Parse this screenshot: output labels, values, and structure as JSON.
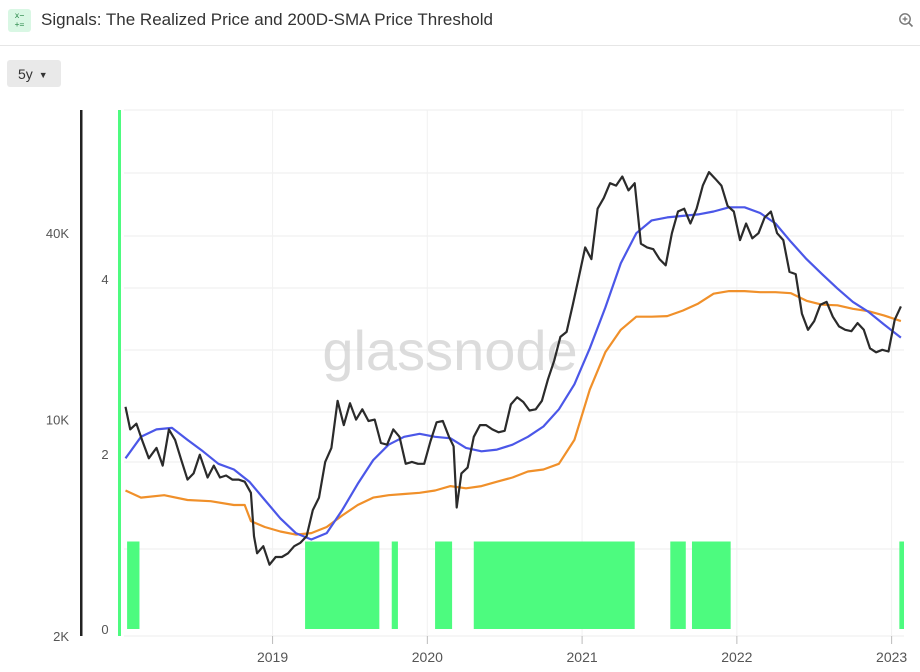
{
  "header": {
    "icon": "calculator-icon",
    "title": "Signals: The Realized Price and 200D-SMA Price Threshold",
    "zoom_icon": "zoom-in-icon"
  },
  "controls": {
    "resolution": "5y"
  },
  "watermark": "glassnode",
  "colors": {
    "price": "#2b2b2b",
    "sma": "#4b57e8",
    "realized": "#f0902a",
    "signal": "#4dfb7f"
  },
  "chart_data": {
    "type": "line",
    "x_ticks": [
      "2019",
      "2020",
      "2021",
      "2022",
      "2023"
    ],
    "x_range": [
      "2018-02",
      "2023-02"
    ],
    "y_left": {
      "scale": "log",
      "ticks": [
        "40K",
        "10K",
        "2K"
      ],
      "tick_values": [
        40000,
        10000,
        2000
      ],
      "range": [
        2000,
        100000
      ]
    },
    "y_right": {
      "ticks": [
        "4",
        "2",
        "0"
      ],
      "tick_values": [
        4,
        2,
        0
      ]
    },
    "series": [
      {
        "key": "price",
        "points": [
          [
            "2018.05",
            11000
          ],
          [
            "2018.08",
            9300
          ],
          [
            "2018.12",
            9700
          ],
          [
            "2018.16",
            8500
          ],
          [
            "2018.20",
            7500
          ],
          [
            "2018.25",
            8100
          ],
          [
            "2018.29",
            7100
          ],
          [
            "2018.33",
            9300
          ],
          [
            "2018.37",
            8600
          ],
          [
            "2018.41",
            7400
          ],
          [
            "2018.45",
            6400
          ],
          [
            "2018.49",
            6700
          ],
          [
            "2018.53",
            7700
          ],
          [
            "2018.58",
            6500
          ],
          [
            "2018.62",
            7100
          ],
          [
            "2018.66",
            6500
          ],
          [
            "2018.70",
            6600
          ],
          [
            "2018.74",
            6400
          ],
          [
            "2018.78",
            6400
          ],
          [
            "2018.82",
            6300
          ],
          [
            "2018.86",
            5800
          ],
          [
            "2018.88",
            4200
          ],
          [
            "2018.90",
            3700
          ],
          [
            "2018.94",
            3900
          ],
          [
            "2018.98",
            3400
          ],
          [
            "2019.02",
            3600
          ],
          [
            "2019.06",
            3600
          ],
          [
            "2019.10",
            3700
          ],
          [
            "2019.14",
            3900
          ],
          [
            "2019.18",
            4000
          ],
          [
            "2019.22",
            4200
          ],
          [
            "2019.26",
            5100
          ],
          [
            "2019.30",
            5600
          ],
          [
            "2019.34",
            7300
          ],
          [
            "2019.38",
            8100
          ],
          [
            "2019.42",
            11500
          ],
          [
            "2019.46",
            9600
          ],
          [
            "2019.50",
            11300
          ],
          [
            "2019.54",
            10000
          ],
          [
            "2019.58",
            10800
          ],
          [
            "2019.62",
            9900
          ],
          [
            "2019.66",
            10000
          ],
          [
            "2019.70",
            8400
          ],
          [
            "2019.74",
            8300
          ],
          [
            "2019.78",
            9300
          ],
          [
            "2019.82",
            8800
          ],
          [
            "2019.86",
            7200
          ],
          [
            "2019.90",
            7300
          ],
          [
            "2019.94",
            7200
          ],
          [
            "2019.98",
            7200
          ],
          [
            "2020.02",
            8500
          ],
          [
            "2020.06",
            9800
          ],
          [
            "2020.10",
            9900
          ],
          [
            "2020.14",
            8800
          ],
          [
            "2020.17",
            8200
          ],
          [
            "2020.19",
            5200
          ],
          [
            "2020.22",
            6700
          ],
          [
            "2020.26",
            7000
          ],
          [
            "2020.30",
            8800
          ],
          [
            "2020.34",
            9600
          ],
          [
            "2020.38",
            9600
          ],
          [
            "2020.42",
            9300
          ],
          [
            "2020.46",
            9100
          ],
          [
            "2020.50",
            9200
          ],
          [
            "2020.54",
            11200
          ],
          [
            "2020.58",
            11800
          ],
          [
            "2020.62",
            11400
          ],
          [
            "2020.66",
            10700
          ],
          [
            "2020.70",
            10800
          ],
          [
            "2020.74",
            11500
          ],
          [
            "2020.78",
            13500
          ],
          [
            "2020.82",
            15500
          ],
          [
            "2020.86",
            18500
          ],
          [
            "2020.90",
            19200
          ],
          [
            "2020.94",
            23500
          ],
          [
            "2020.98",
            29000
          ],
          [
            "2021.02",
            36000
          ],
          [
            "2021.06",
            33000
          ],
          [
            "2021.10",
            48000
          ],
          [
            "2021.14",
            52000
          ],
          [
            "2021.18",
            58000
          ],
          [
            "2021.22",
            57000
          ],
          [
            "2021.26",
            61000
          ],
          [
            "2021.30",
            55000
          ],
          [
            "2021.34",
            58000
          ],
          [
            "2021.38",
            37000
          ],
          [
            "2021.42",
            36000
          ],
          [
            "2021.46",
            35500
          ],
          [
            "2021.50",
            33000
          ],
          [
            "2021.54",
            31500
          ],
          [
            "2021.58",
            40000
          ],
          [
            "2021.62",
            47000
          ],
          [
            "2021.66",
            48000
          ],
          [
            "2021.70",
            43000
          ],
          [
            "2021.74",
            48000
          ],
          [
            "2021.78",
            57000
          ],
          [
            "2021.82",
            63000
          ],
          [
            "2021.86",
            60000
          ],
          [
            "2021.90",
            57000
          ],
          [
            "2021.94",
            49000
          ],
          [
            "2021.98",
            47000
          ],
          [
            "2022.02",
            38000
          ],
          [
            "2022.06",
            43000
          ],
          [
            "2022.10",
            38500
          ],
          [
            "2022.14",
            40000
          ],
          [
            "2022.18",
            45000
          ],
          [
            "2022.22",
            47000
          ],
          [
            "2022.26",
            40000
          ],
          [
            "2022.30",
            38000
          ],
          [
            "2022.34",
            30000
          ],
          [
            "2022.38",
            29500
          ],
          [
            "2022.42",
            22000
          ],
          [
            "2022.46",
            19500
          ],
          [
            "2022.50",
            20800
          ],
          [
            "2022.54",
            23500
          ],
          [
            "2022.58",
            24000
          ],
          [
            "2022.62",
            21500
          ],
          [
            "2022.66",
            20000
          ],
          [
            "2022.70",
            19500
          ],
          [
            "2022.74",
            19300
          ],
          [
            "2022.78",
            20500
          ],
          [
            "2022.82",
            19500
          ],
          [
            "2022.86",
            17000
          ],
          [
            "2022.90",
            16500
          ],
          [
            "2022.94",
            16800
          ],
          [
            "2022.98",
            16600
          ],
          [
            "2023.02",
            21000
          ],
          [
            "2023.06",
            23200
          ]
        ]
      },
      {
        "key": "sma_200d",
        "points": [
          [
            "2018.05",
            7500
          ],
          [
            "2018.15",
            8800
          ],
          [
            "2018.25",
            9300
          ],
          [
            "2018.35",
            9400
          ],
          [
            "2018.45",
            8600
          ],
          [
            "2018.55",
            7900
          ],
          [
            "2018.65",
            7200
          ],
          [
            "2018.75",
            6900
          ],
          [
            "2018.85",
            6300
          ],
          [
            "2018.95",
            5500
          ],
          [
            "2019.05",
            4800
          ],
          [
            "2019.15",
            4300
          ],
          [
            "2019.25",
            4100
          ],
          [
            "2019.35",
            4300
          ],
          [
            "2019.45",
            5100
          ],
          [
            "2019.55",
            6200
          ],
          [
            "2019.65",
            7400
          ],
          [
            "2019.75",
            8300
          ],
          [
            "2019.85",
            8800
          ],
          [
            "2019.95",
            9000
          ],
          [
            "2020.05",
            8800
          ],
          [
            "2020.15",
            8700
          ],
          [
            "2020.25",
            8100
          ],
          [
            "2020.35",
            7900
          ],
          [
            "2020.45",
            8000
          ],
          [
            "2020.55",
            8300
          ],
          [
            "2020.65",
            8800
          ],
          [
            "2020.75",
            9500
          ],
          [
            "2020.85",
            10800
          ],
          [
            "2020.95",
            13000
          ],
          [
            "2021.05",
            17000
          ],
          [
            "2021.15",
            23000
          ],
          [
            "2021.25",
            32000
          ],
          [
            "2021.35",
            40000
          ],
          [
            "2021.45",
            44000
          ],
          [
            "2021.55",
            45000
          ],
          [
            "2021.65",
            45500
          ],
          [
            "2021.75",
            46000
          ],
          [
            "2021.85",
            47000
          ],
          [
            "2021.95",
            48500
          ],
          [
            "2022.05",
            48500
          ],
          [
            "2022.15",
            46500
          ],
          [
            "2022.25",
            43000
          ],
          [
            "2022.35",
            37500
          ],
          [
            "2022.45",
            33000
          ],
          [
            "2022.55",
            29500
          ],
          [
            "2022.65",
            26500
          ],
          [
            "2022.75",
            24000
          ],
          [
            "2022.85",
            22300
          ],
          [
            "2022.95",
            20300
          ],
          [
            "2023.06",
            18400
          ]
        ]
      },
      {
        "key": "realized_price",
        "points": [
          [
            "2018.05",
            5900
          ],
          [
            "2018.15",
            5600
          ],
          [
            "2018.30",
            5700
          ],
          [
            "2018.45",
            5500
          ],
          [
            "2018.60",
            5450
          ],
          [
            "2018.75",
            5300
          ],
          [
            "2018.82",
            5300
          ],
          [
            "2018.86",
            4700
          ],
          [
            "2018.95",
            4500
          ],
          [
            "2019.05",
            4350
          ],
          [
            "2019.15",
            4250
          ],
          [
            "2019.25",
            4300
          ],
          [
            "2019.35",
            4500
          ],
          [
            "2019.45",
            4900
          ],
          [
            "2019.55",
            5300
          ],
          [
            "2019.65",
            5600
          ],
          [
            "2019.75",
            5700
          ],
          [
            "2019.85",
            5750
          ],
          [
            "2019.95",
            5800
          ],
          [
            "2020.05",
            5900
          ],
          [
            "2020.15",
            6100
          ],
          [
            "2020.25",
            6000
          ],
          [
            "2020.35",
            6100
          ],
          [
            "2020.45",
            6300
          ],
          [
            "2020.55",
            6500
          ],
          [
            "2020.65",
            6800
          ],
          [
            "2020.75",
            6900
          ],
          [
            "2020.85",
            7200
          ],
          [
            "2020.95",
            8600
          ],
          [
            "2021.05",
            12500
          ],
          [
            "2021.15",
            16500
          ],
          [
            "2021.25",
            19500
          ],
          [
            "2021.35",
            21500
          ],
          [
            "2021.45",
            21500
          ],
          [
            "2021.55",
            21600
          ],
          [
            "2021.65",
            22500
          ],
          [
            "2021.75",
            23700
          ],
          [
            "2021.85",
            25500
          ],
          [
            "2021.95",
            26000
          ],
          [
            "2022.05",
            26000
          ],
          [
            "2022.15",
            25800
          ],
          [
            "2022.25",
            25800
          ],
          [
            "2022.35",
            25600
          ],
          [
            "2022.45",
            24200
          ],
          [
            "2022.55",
            23500
          ],
          [
            "2022.65",
            23400
          ],
          [
            "2022.75",
            22800
          ],
          [
            "2022.85",
            22400
          ],
          [
            "2022.95",
            21700
          ],
          [
            "2023.06",
            20800
          ]
        ]
      }
    ],
    "signal_bars": {
      "description": "price above realized price and 200D-SMA signal (right axis, 0-1)",
      "intervals": [
        [
          "2018.06",
          "2018.14"
        ],
        [
          "2019.21",
          "2019.69"
        ],
        [
          "2019.77",
          "2019.81"
        ],
        [
          "2020.05",
          "2020.16"
        ],
        [
          "2020.30",
          "2021.34"
        ],
        [
          "2021.57",
          "2021.67"
        ],
        [
          "2021.71",
          "2021.96"
        ],
        [
          "2023.05",
          "2023.08"
        ]
      ]
    }
  }
}
